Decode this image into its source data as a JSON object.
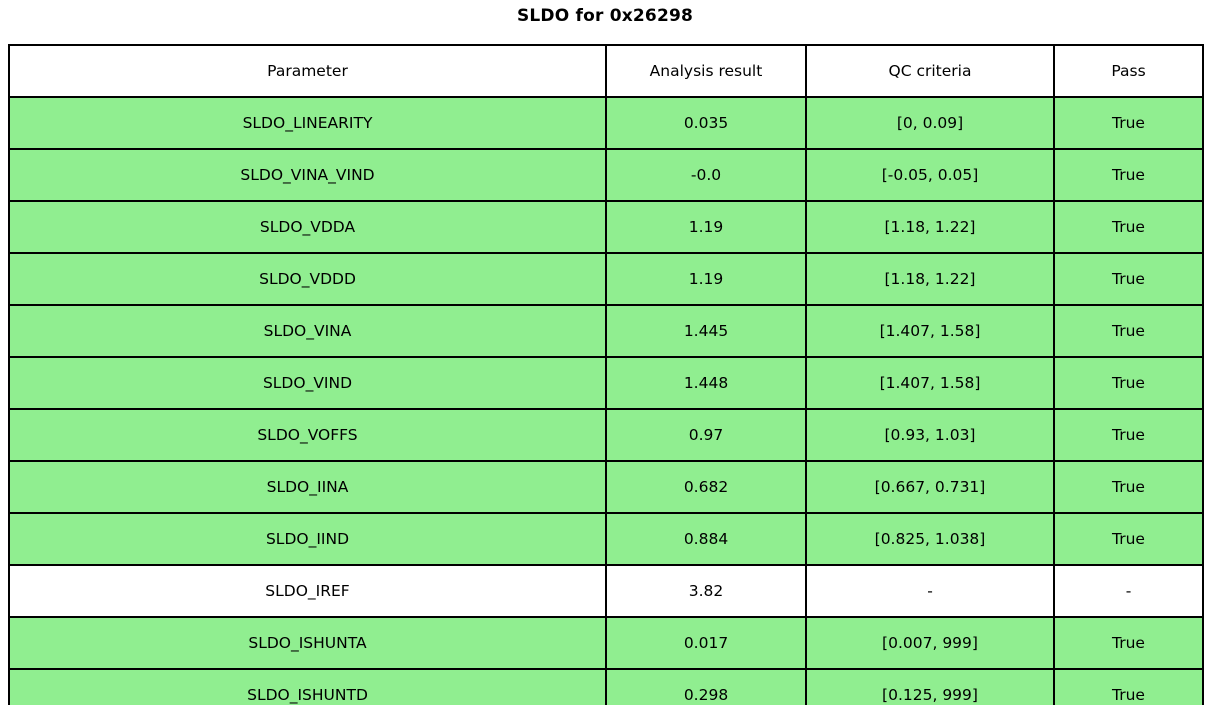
{
  "chart_data": {
    "type": "table",
    "title": "SLDO for 0x26298",
    "columns": [
      "Parameter",
      "Analysis result",
      "QC criteria",
      "Pass"
    ],
    "rows": [
      {
        "param": "SLDO_LINEARITY",
        "result": "0.035",
        "qc": "[0, 0.09]",
        "pass": "True",
        "row_color": "#90EE90"
      },
      {
        "param": "SLDO_VINA_VIND",
        "result": "-0.0",
        "qc": "[-0.05, 0.05]",
        "pass": "True",
        "row_color": "#90EE90"
      },
      {
        "param": "SLDO_VDDA",
        "result": "1.19",
        "qc": "[1.18, 1.22]",
        "pass": "True",
        "row_color": "#90EE90"
      },
      {
        "param": "SLDO_VDDD",
        "result": "1.19",
        "qc": "[1.18, 1.22]",
        "pass": "True",
        "row_color": "#90EE90"
      },
      {
        "param": "SLDO_VINA",
        "result": "1.445",
        "qc": "[1.407, 1.58]",
        "pass": "True",
        "row_color": "#90EE90"
      },
      {
        "param": "SLDO_VIND",
        "result": "1.448",
        "qc": "[1.407, 1.58]",
        "pass": "True",
        "row_color": "#90EE90"
      },
      {
        "param": "SLDO_VOFFS",
        "result": "0.97",
        "qc": "[0.93, 1.03]",
        "pass": "True",
        "row_color": "#90EE90"
      },
      {
        "param": "SLDO_IINA",
        "result": "0.682",
        "qc": "[0.667, 0.731]",
        "pass": "True",
        "row_color": "#90EE90"
      },
      {
        "param": "SLDO_IIND",
        "result": "0.884",
        "qc": "[0.825, 1.038]",
        "pass": "True",
        "row_color": "#90EE90"
      },
      {
        "param": "SLDO_IREF",
        "result": "3.82",
        "qc": "-",
        "pass": "-",
        "row_color": "#FFFFFF"
      },
      {
        "param": "SLDO_ISHUNTA",
        "result": "0.017",
        "qc": "[0.007, 999]",
        "pass": "True",
        "row_color": "#90EE90"
      },
      {
        "param": "SLDO_ISHUNTD",
        "result": "0.298",
        "qc": "[0.125, 999]",
        "pass": "True",
        "row_color": "#90EE90"
      }
    ],
    "colors": {
      "pass_row": "#90EE90",
      "neutral_row": "#FFFFFF",
      "border": "#000000",
      "text": "#000000"
    },
    "layout_hints": {
      "header_background": "#FFFFFF",
      "grid": "on"
    }
  }
}
